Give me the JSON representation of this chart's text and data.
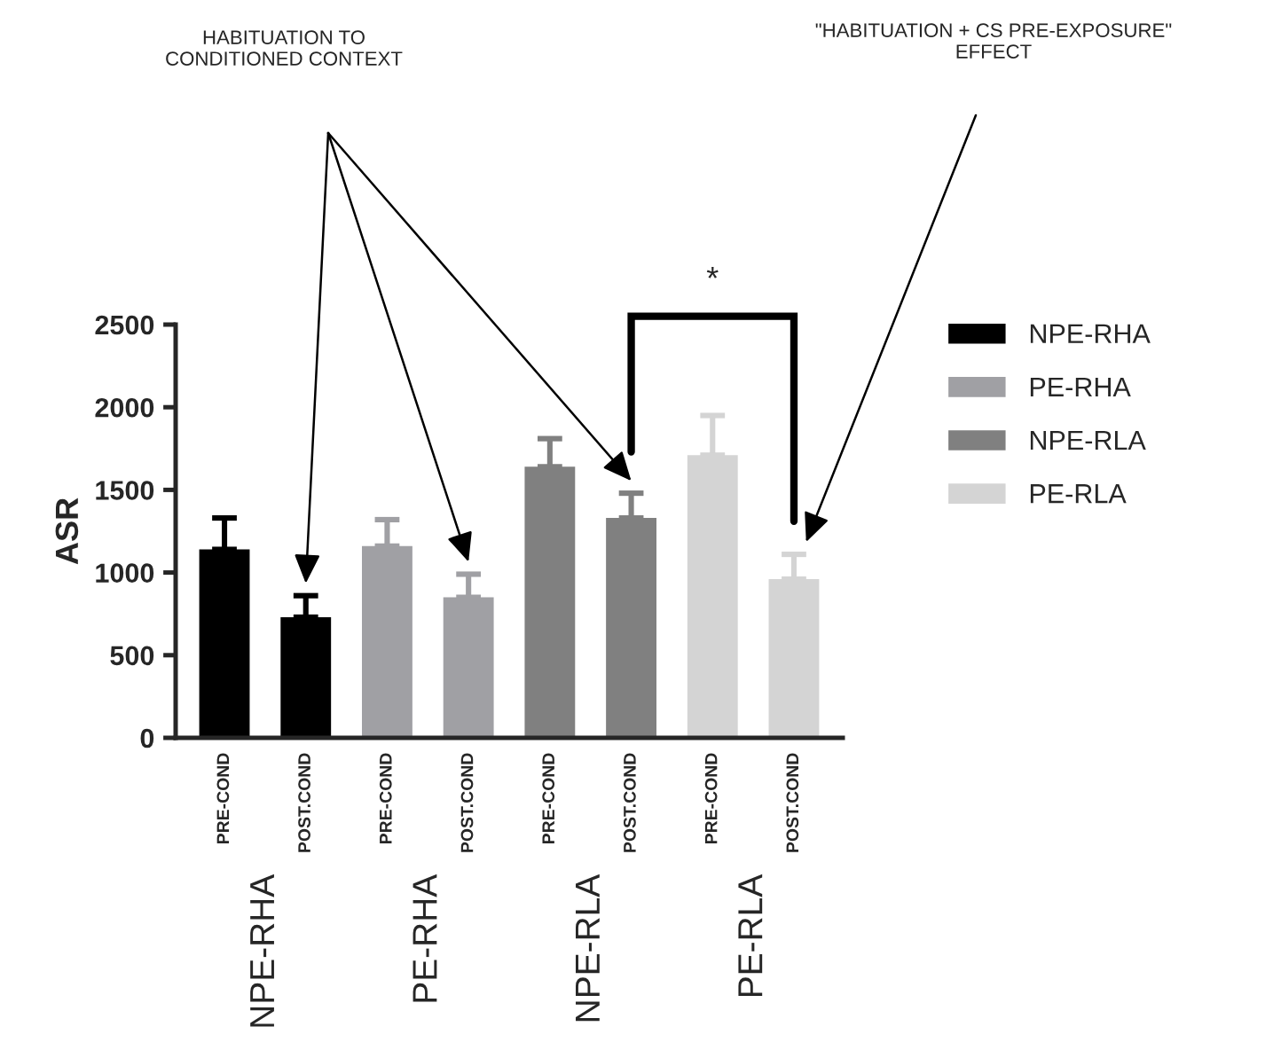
{
  "chart_data": {
    "type": "bar",
    "ylabel": "ASR",
    "categories": [
      "PRE-COND",
      "POST.COND",
      "PRE-COND",
      "POST.COND",
      "PRE-COND",
      "POST.COND",
      "PRE-COND",
      "POST.COND"
    ],
    "series": [
      {
        "name": "NPE-RHA",
        "color": "#000000",
        "values": [
          1140,
          730,
          null,
          null,
          null,
          null,
          null,
          null
        ],
        "errors": [
          [
            1140,
            1330
          ],
          [
            730,
            860
          ],
          null,
          null,
          null,
          null,
          null,
          null
        ]
      },
      {
        "name": "PE-RHA",
        "color": "#a0a0a4",
        "values": [
          null,
          null,
          1160,
          850,
          null,
          null,
          null,
          null
        ],
        "errors": [
          null,
          null,
          [
            1160,
            1320
          ],
          [
            850,
            990
          ],
          null,
          null,
          null,
          null
        ]
      },
      {
        "name": "NPE-RLA",
        "color": "#808080",
        "values": [
          null,
          null,
          null,
          null,
          1640,
          1330,
          null,
          null
        ],
        "errors": [
          null,
          null,
          null,
          null,
          [
            1640,
            1810
          ],
          [
            1330,
            1480
          ],
          null,
          null
        ]
      },
      {
        "name": "PE-RLA",
        "color": "#d4d4d4",
        "values": [
          null,
          null,
          null,
          null,
          null,
          null,
          1710,
          960
        ],
        "errors": [
          null,
          null,
          null,
          null,
          null,
          null,
          [
            1710,
            1950
          ],
          [
            960,
            1110
          ]
        ]
      }
    ],
    "ylim": [
      0,
      2500
    ],
    "yticks": [
      0,
      500,
      1000,
      1500,
      2000,
      2500
    ],
    "grid": false,
    "legend": "right",
    "annotations": [
      "HABITUATION TO\nCONDITIONED CONTEXT",
      "\"HABITUATION + CS PRE-EXPOSURE\"\nEFFECT",
      "*"
    ]
  }
}
